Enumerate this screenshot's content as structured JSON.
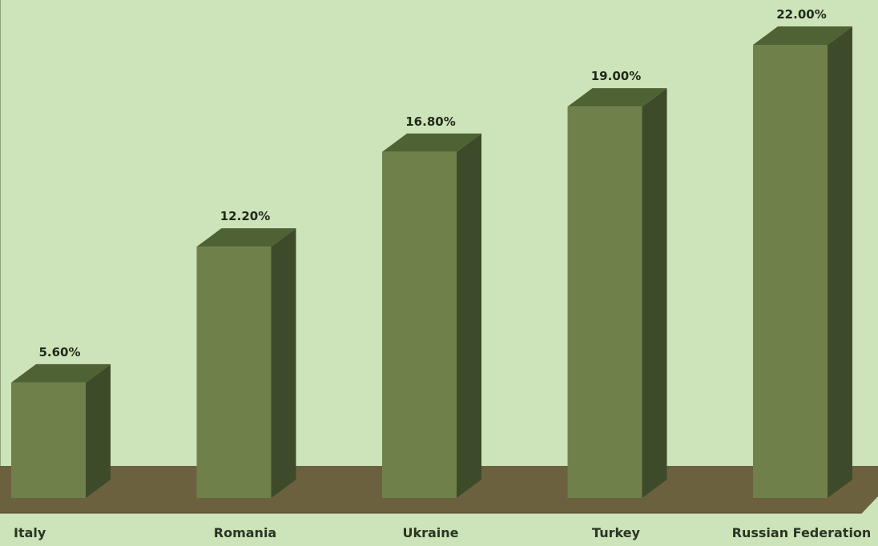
{
  "chart_data": {
    "type": "bar",
    "style": "3d-column",
    "categories": [
      "Italy",
      "Romania",
      "Ukraine",
      "Turkey",
      "Russian Federation"
    ],
    "values": [
      5.6,
      12.2,
      16.8,
      19.0,
      22.0
    ],
    "data_labels": [
      "5.60%",
      "12.20%",
      "16.80%",
      "19.00%",
      "22.00%"
    ],
    "title": "",
    "xlabel": "",
    "ylabel": "",
    "ylim": [
      0,
      22
    ],
    "grid": false,
    "legend": "none"
  },
  "colors": {
    "background": "#cde3b9",
    "bar_front": "#6f804b",
    "bar_top": "#4f6233",
    "bar_side": "#3e4b2a",
    "floor": "#6b613f",
    "floor_edge": "#564e33",
    "label_text": "#1f2a1a"
  }
}
